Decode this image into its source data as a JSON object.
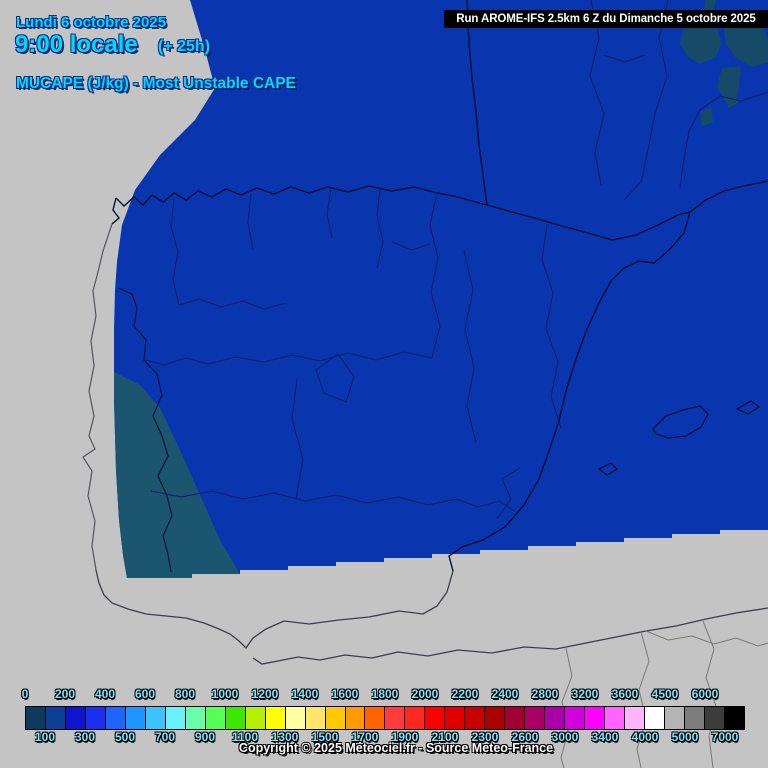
{
  "header": {
    "date_line": "Lundi 6 octobre 2025",
    "time_local": "9:00 locale",
    "forecast_offset": "(+ 25h)",
    "parameter_title": "MUCAPE (J/kg) - Most Unstable CAPE"
  },
  "run_box": {
    "text": "Run AROME-IFS 2.5km 6 Z du Dimanche 5 octobre 2025"
  },
  "footer": {
    "copyright": "Copyright © 2025 Meteociel.fr - Source Meteo-France"
  },
  "map": {
    "background_color": "#c4c4c4",
    "domain_fill": "#0936ae",
    "low_cape_fill": "#1c5570",
    "label_color": "#7ce4ff"
  },
  "chart_data": {
    "type": "heatmap",
    "title": "MUCAPE (J/kg) - Most Unstable CAPE",
    "legend_position": "bottom",
    "unit": "J/kg",
    "scale_cells": [
      {
        "value": 0,
        "color": "#0d3a5f"
      },
      {
        "value": 100,
        "color": "#0d3f96"
      },
      {
        "value": 200,
        "color": "#0f14cd"
      },
      {
        "value": 300,
        "color": "#1a2ff0"
      },
      {
        "value": 400,
        "color": "#1e64ff"
      },
      {
        "value": 500,
        "color": "#1e96ff"
      },
      {
        "value": 600,
        "color": "#3cc3fa"
      },
      {
        "value": 700,
        "color": "#69f0ff"
      },
      {
        "value": 800,
        "color": "#69ffaa"
      },
      {
        "value": 900,
        "color": "#55ff55"
      },
      {
        "value": 1000,
        "color": "#3ce800"
      },
      {
        "value": 1100,
        "color": "#b4f000"
      },
      {
        "value": 1200,
        "color": "#ffff00"
      },
      {
        "value": 1300,
        "color": "#ffffa0"
      },
      {
        "value": 1400,
        "color": "#ffe669"
      },
      {
        "value": 1500,
        "color": "#ffc800"
      },
      {
        "value": 1600,
        "color": "#ff9b00"
      },
      {
        "value": 1700,
        "color": "#ff6400"
      },
      {
        "value": 1800,
        "color": "#ff3c3c"
      },
      {
        "value": 1900,
        "color": "#ff281e"
      },
      {
        "value": 2000,
        "color": "#fa0000"
      },
      {
        "value": 2100,
        "color": "#e10000"
      },
      {
        "value": 2200,
        "color": "#c80000"
      },
      {
        "value": 2300,
        "color": "#aa0000"
      },
      {
        "value": 2400,
        "color": "#a00032"
      },
      {
        "value": 2600,
        "color": "#aa0064"
      },
      {
        "value": 2800,
        "color": "#aa00aa"
      },
      {
        "value": 3000,
        "color": "#d200dc"
      },
      {
        "value": 3200,
        "color": "#ff00ff"
      },
      {
        "value": 3400,
        "color": "#ff64ff"
      },
      {
        "value": 3600,
        "color": "#ffb4ff"
      },
      {
        "value": 4000,
        "color": "#ffffff"
      },
      {
        "value": 4500,
        "color": "#b4b4b4"
      },
      {
        "value": 5000,
        "color": "#7d7d7d"
      },
      {
        "value": 6000,
        "color": "#3c3c3c"
      },
      {
        "value": 7000,
        "color": "#000000"
      }
    ]
  }
}
